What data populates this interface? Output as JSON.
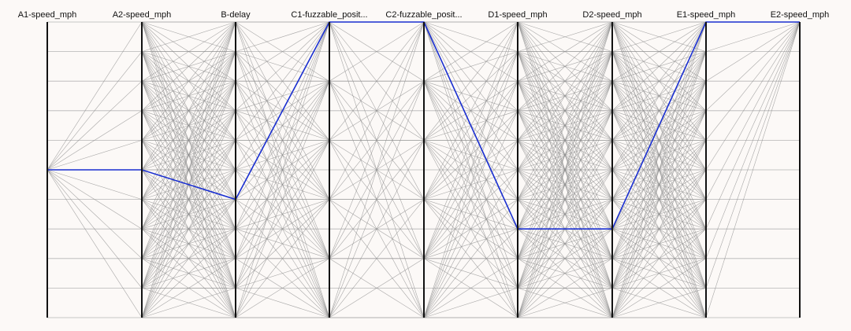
{
  "chart_data": {
    "type": "parallel-coordinates",
    "axes": [
      "A1-speed_mph",
      "A2-speed_mph",
      "B-delay",
      "C1-fuzzable_posit...",
      "C2-fuzzable_posit...",
      "D1-speed_mph",
      "D2-speed_mph",
      "E1-speed_mph",
      "E2-speed_mph"
    ],
    "levels": [
      0,
      1,
      2,
      3,
      4,
      5,
      6,
      7,
      8,
      9,
      10
    ],
    "axis_level_sets": [
      [
        5
      ],
      [
        0,
        1,
        2,
        3,
        4,
        5,
        6,
        7,
        8,
        9,
        10
      ],
      [
        0,
        1,
        2,
        3,
        4,
        5,
        6,
        7,
        8,
        9,
        10
      ],
      [
        0,
        2,
        4,
        6,
        8,
        10
      ],
      [
        0,
        2,
        4,
        6,
        8,
        10
      ],
      [
        0,
        1,
        2,
        3,
        4,
        5,
        6,
        7,
        8,
        9,
        10
      ],
      [
        0,
        1,
        2,
        3,
        4,
        5,
        6,
        7,
        8,
        9,
        10
      ],
      [
        0,
        1,
        2,
        3,
        4,
        5,
        6,
        7,
        8,
        9,
        10
      ],
      [
        0
      ]
    ],
    "highlighted_path": [
      5,
      5,
      6,
      0,
      0,
      7,
      7,
      0,
      0
    ],
    "grid": true,
    "colors": {
      "background": "#fcf9f7",
      "axis": "#111111",
      "grid": "#b5b5b5",
      "background_lines": "#8c8c8c",
      "highlight": "#1a2fd0"
    }
  }
}
